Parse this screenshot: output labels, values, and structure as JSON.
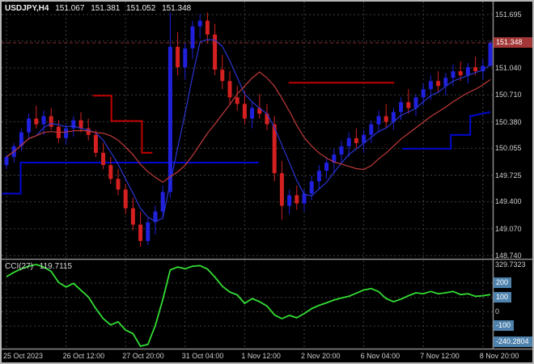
{
  "window": {
    "title_symbol": "USDJPY,H4",
    "title_open": "151.067",
    "title_high": "151.381",
    "title_low": "151.052",
    "title_close": "151.348"
  },
  "indicator": {
    "label": "CCI(27)",
    "value": "119.7115"
  },
  "price_axis": {
    "labels": [
      {
        "text": "151.695",
        "value": 151.695
      },
      {
        "text": "151.040",
        "value": 151.04
      },
      {
        "text": "150.710",
        "value": 150.71
      },
      {
        "text": "150.380",
        "value": 150.38
      },
      {
        "text": "150.055",
        "value": 150.055
      },
      {
        "text": "149.725",
        "value": 149.725
      },
      {
        "text": "149.400",
        "value": 149.4
      },
      {
        "text": "149.070",
        "value": 149.07
      },
      {
        "text": "148.740",
        "value": 148.74
      }
    ],
    "bid": {
      "text": "151.348",
      "value": 151.348
    }
  },
  "cci_axis": {
    "plain": [
      {
        "text": "329.7323",
        "value": 329.7323
      },
      {
        "text": "0",
        "value": 0
      }
    ],
    "boxed": [
      {
        "text": "200",
        "value": 200
      },
      {
        "text": "100",
        "value": 100
      },
      {
        "text": "-100",
        "value": -100
      },
      {
        "text": "-240.2804",
        "value": -240.2804
      }
    ]
  },
  "time_axis": {
    "labels": [
      {
        "text": "25 Oct 2023",
        "bar": 0
      },
      {
        "text": "26 Oct 12:00",
        "bar": 8
      },
      {
        "text": "27 Oct 20:00",
        "bar": 16
      },
      {
        "text": "31 Oct 04:00",
        "bar": 24
      },
      {
        "text": "1 Nov 12:00",
        "bar": 32
      },
      {
        "text": "2 Nov 20:00",
        "bar": 40
      },
      {
        "text": "6 Nov 04:00",
        "bar": 48
      },
      {
        "text": "7 Nov 12:00",
        "bar": 56
      },
      {
        "text": "8 Nov 20:00",
        "bar": 64
      }
    ]
  },
  "colors": {
    "bg": "#000000",
    "frame": "#b6b6b6",
    "grid": "#3f3f3f",
    "separator": "#8a8a8a",
    "bull": "#2020dd",
    "bear": "#d42020",
    "ma_fast": "#2a35d4",
    "ma_slow": "#c23a3a",
    "step_up": "#0008d0",
    "step_down": "#c00000",
    "cci_line": "#33dd33",
    "axis_text": "#cfcfcf",
    "bid_box": "#a33636",
    "level_box": "#4e82ad"
  },
  "chart_data": [
    {
      "type": "candlestick",
      "symbol": "USDJPY",
      "timeframe": "H4",
      "title": "USDJPY,H4 151.067 151.381 151.052 151.348",
      "bid": 151.348,
      "ylim": [
        148.72,
        151.86
      ],
      "y_gridlines": {
        "top": 151.695,
        "bottom": 148.74,
        "step": 0.33
      },
      "y_grid_values": [
        151.695,
        151.37,
        151.04,
        150.71,
        150.38,
        150.055,
        149.725,
        149.4,
        149.07,
        148.74
      ],
      "candles": [
        [
          149.85,
          149.98,
          149.8,
          149.95
        ],
        [
          149.95,
          150.12,
          149.88,
          150.08
        ],
        [
          150.08,
          150.3,
          150.02,
          150.25
        ],
        [
          150.25,
          150.48,
          150.18,
          150.42
        ],
        [
          150.42,
          150.58,
          150.3,
          150.35
        ],
        [
          150.35,
          150.52,
          150.22,
          150.45
        ],
        [
          150.45,
          150.55,
          150.28,
          150.32
        ],
        [
          150.32,
          150.4,
          150.12,
          150.18
        ],
        [
          150.18,
          150.35,
          150.1,
          150.3
        ],
        [
          150.3,
          150.45,
          150.2,
          150.4
        ],
        [
          150.4,
          150.5,
          150.25,
          150.3
        ],
        [
          150.3,
          150.42,
          150.15,
          150.22
        ],
        [
          150.22,
          150.28,
          149.95,
          150.0
        ],
        [
          150.0,
          150.12,
          149.8,
          149.85
        ],
        [
          149.85,
          149.95,
          149.62,
          149.68
        ],
        [
          149.68,
          149.8,
          149.48,
          149.55
        ],
        [
          149.55,
          149.62,
          149.25,
          149.32
        ],
        [
          149.32,
          149.45,
          149.05,
          149.12
        ],
        [
          149.12,
          149.28,
          148.85,
          148.92
        ],
        [
          148.92,
          149.2,
          148.87,
          149.15
        ],
        [
          149.15,
          149.35,
          149.0,
          149.28
        ],
        [
          149.28,
          149.6,
          149.2,
          149.52
        ],
        [
          149.52,
          151.72,
          149.45,
          151.3
        ],
        [
          151.3,
          151.48,
          150.95,
          151.05
        ],
        [
          151.05,
          151.35,
          150.9,
          151.28
        ],
        [
          151.28,
          151.62,
          151.15,
          151.55
        ],
        [
          151.55,
          151.7,
          151.4,
          151.62
        ],
        [
          151.62,
          151.72,
          151.35,
          151.45
        ],
        [
          151.45,
          151.58,
          150.95,
          151.02
        ],
        [
          151.02,
          151.2,
          150.78,
          150.88
        ],
        [
          150.88,
          151.0,
          150.6,
          150.68
        ],
        [
          150.68,
          150.82,
          150.52,
          150.6
        ],
        [
          150.6,
          150.75,
          150.35,
          150.42
        ],
        [
          150.42,
          150.62,
          150.3,
          150.55
        ],
        [
          150.55,
          150.72,
          150.42,
          150.48
        ],
        [
          150.48,
          150.6,
          150.28,
          150.35
        ],
        [
          150.35,
          150.45,
          149.65,
          149.75
        ],
        [
          149.75,
          149.9,
          149.18,
          149.35
        ],
        [
          149.35,
          149.55,
          149.25,
          149.48
        ],
        [
          149.48,
          149.6,
          149.3,
          149.38
        ],
        [
          149.38,
          149.55,
          149.28,
          149.5
        ],
        [
          149.5,
          149.72,
          149.42,
          149.65
        ],
        [
          149.65,
          149.85,
          149.55,
          149.78
        ],
        [
          149.78,
          149.95,
          149.68,
          149.88
        ],
        [
          149.88,
          150.05,
          149.75,
          149.98
        ],
        [
          149.98,
          150.15,
          149.88,
          150.08
        ],
        [
          150.08,
          150.25,
          149.95,
          150.18
        ],
        [
          150.18,
          150.3,
          150.05,
          150.12
        ],
        [
          150.12,
          150.28,
          150.0,
          150.22
        ],
        [
          150.22,
          150.4,
          150.12,
          150.35
        ],
        [
          150.35,
          150.52,
          150.25,
          150.45
        ],
        [
          150.45,
          150.6,
          150.3,
          150.38
        ],
        [
          150.38,
          150.55,
          150.28,
          150.5
        ],
        [
          150.5,
          150.68,
          150.4,
          150.62
        ],
        [
          150.62,
          150.78,
          150.48,
          150.55
        ],
        [
          150.55,
          150.72,
          150.45,
          150.68
        ],
        [
          150.68,
          150.85,
          150.58,
          150.78
        ],
        [
          150.78,
          150.95,
          150.65,
          150.88
        ],
        [
          150.88,
          151.0,
          150.75,
          150.82
        ],
        [
          150.82,
          150.98,
          150.7,
          150.92
        ],
        [
          150.92,
          151.08,
          150.82,
          151.0
        ],
        [
          151.0,
          151.12,
          150.88,
          150.95
        ],
        [
          150.95,
          151.1,
          150.85,
          151.05
        ],
        [
          151.05,
          151.18,
          150.95,
          151.0
        ],
        [
          151.0,
          151.15,
          150.9,
          151.067
        ],
        [
          151.067,
          151.381,
          151.052,
          151.348
        ]
      ],
      "ma_overlays": [
        {
          "name": "fast-ma",
          "period": 5,
          "color_key": "ma_fast"
        },
        {
          "name": "slow-ma",
          "period": 13,
          "color_key": "ma_slow"
        }
      ],
      "step_lines": [
        {
          "color_key": "step_up",
          "points": [
            [
              -0.6,
              149.5
            ],
            [
              1.9,
              149.5
            ],
            [
              1.9,
              149.88
            ],
            [
              33.9,
              149.88
            ]
          ]
        },
        {
          "color_key": "step_down",
          "points": [
            [
              11.6,
              150.7
            ],
            [
              14.1,
              150.7
            ],
            [
              14.1,
              150.39
            ],
            [
              18.2,
              150.39
            ],
            [
              18.2,
              150.0
            ],
            [
              19.6,
              150.0
            ]
          ]
        },
        {
          "color_key": "step_down",
          "points": [
            [
              37.9,
              150.86
            ],
            [
              52.1,
              150.86
            ]
          ]
        },
        {
          "color_key": "step_up",
          "points": [
            [
              53.2,
              150.05
            ],
            [
              59.7,
              150.05
            ],
            [
              59.7,
              150.22
            ],
            [
              62.3,
              150.22
            ],
            [
              62.3,
              150.45
            ],
            [
              65,
              150.5
            ]
          ]
        }
      ]
    },
    {
      "type": "line",
      "name": "CCI",
      "period": 27,
      "current": 119.7115,
      "scale_max": 329.7323,
      "scale_min": -240.2804,
      "levels": [
        200,
        100,
        0,
        -100
      ],
      "values": [
        245,
        275,
        300,
        318,
        329.73,
        312,
        282,
        205,
        172,
        198,
        150,
        104,
        22,
        -48,
        -92,
        -70,
        -128,
        -152,
        -240.28,
        -228,
        -95,
        85,
        292,
        312,
        300,
        318,
        322,
        298,
        242,
        178,
        138,
        118,
        58,
        92,
        70,
        40,
        -22,
        -48,
        -25,
        -42,
        -12,
        22,
        45,
        62,
        82,
        96,
        108,
        130,
        152,
        162,
        140,
        92,
        70,
        88,
        112,
        132,
        126,
        142,
        126,
        132,
        142,
        120,
        126,
        108,
        112,
        119.7115
      ]
    }
  ]
}
